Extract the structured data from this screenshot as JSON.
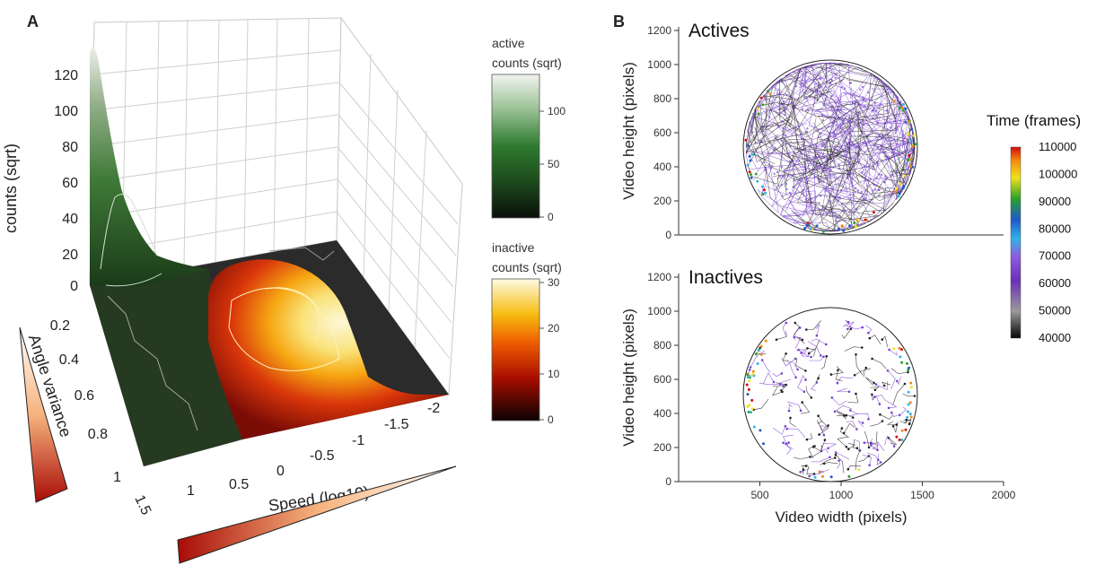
{
  "panel_a": {
    "label": "A",
    "zlabel": "counts (sqrt)",
    "z_ticks": [
      "0",
      "20",
      "40",
      "60",
      "80",
      "100",
      "120"
    ],
    "ylabel": "Angle variance",
    "y_ticks": [
      "0.2",
      "0.4",
      "0.6",
      "0.8",
      "1"
    ],
    "xlabel": "Speed (log10)",
    "x_ticks": [
      "1.5",
      "1",
      "0.5",
      "0",
      "-0.5",
      "-1",
      "-1.5",
      "-2"
    ],
    "colorbar_active": {
      "title": [
        "active",
        "counts (sqrt)"
      ],
      "ticks": [
        "100",
        "50",
        "0"
      ],
      "range": [
        0,
        130
      ]
    },
    "colorbar_inactive": {
      "title": [
        "inactive",
        "counts (sqrt)"
      ],
      "ticks": [
        "30",
        "20",
        "10",
        "0"
      ],
      "range": [
        0,
        31
      ]
    },
    "colors": {
      "active_low": "#0b120b",
      "active_high": "#eef2ea",
      "inactive_low": "#0e0303",
      "inactive_high": "#fff8da"
    }
  },
  "panel_b": {
    "label": "B",
    "time_colorbar": {
      "title": "Time (frames)",
      "ticks": [
        "110000",
        "100000",
        "90000",
        "80000",
        "70000",
        "60000",
        "50000",
        "40000"
      ],
      "range": [
        40000,
        110000
      ]
    },
    "actives": {
      "title": "Actives",
      "ylabel": "Video height (pixels)",
      "y_ticks": [
        "0",
        "200",
        "400",
        "600",
        "800",
        "1000",
        "1200"
      ]
    },
    "inactives": {
      "title": "Inactives",
      "ylabel": "Video height (pixels)",
      "y_ticks": [
        "0",
        "200",
        "400",
        "600",
        "800",
        "1000",
        "1200"
      ],
      "xlabel": "Video width (pixels)",
      "x_ticks": [
        "500",
        "1000",
        "1500",
        "2000"
      ]
    }
  },
  "chart_data": [
    {
      "type": "surface",
      "panel": "A",
      "xlabel": "Speed (log10)",
      "ylabel": "Angle variance",
      "zlabel": "counts (sqrt)",
      "xlim": [
        1.5,
        -2
      ],
      "ylim": [
        0,
        1
      ],
      "zlim": [
        0,
        130
      ],
      "series": [
        {
          "name": "active",
          "peak": {
            "x": 1.5,
            "y": 0.05,
            "z": 125
          }
        },
        {
          "name": "inactive",
          "peak": {
            "x": -0.6,
            "y": 0.15,
            "z": 30
          }
        }
      ]
    },
    {
      "type": "scatter",
      "panel": "B",
      "title": "Actives",
      "xlim": [
        0,
        2000
      ],
      "ylim": [
        0,
        1200
      ],
      "ylabel": "Video height (pixels)",
      "arena": {
        "cx": 950,
        "cy": 540,
        "r": 485
      }
    },
    {
      "type": "scatter",
      "panel": "B",
      "title": "Inactives",
      "xlim": [
        0,
        2000
      ],
      "ylim": [
        0,
        1200
      ],
      "xlabel": "Video width (pixels)",
      "ylabel": "Video height (pixels)",
      "arena": {
        "cx": 950,
        "cy": 540,
        "r": 485
      }
    }
  ]
}
